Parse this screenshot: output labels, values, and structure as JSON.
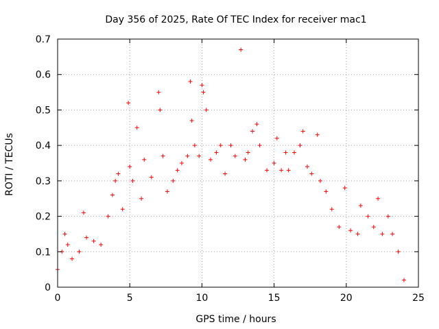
{
  "chart_data": {
    "type": "scatter",
    "title": "Day 356 of 2025, Rate Of TEC Index for receiver mac1",
    "xlabel": "GPS time / hours",
    "ylabel": "ROTI / TECUs",
    "xlim": [
      0,
      25
    ],
    "ylim": [
      0,
      0.7
    ],
    "xticks": [
      "0",
      "5",
      "10",
      "15",
      "20",
      "25"
    ],
    "yticks": [
      "0",
      "0.1",
      "0.2",
      "0.3",
      "0.4",
      "0.5",
      "0.6",
      "0.7"
    ],
    "grid": true,
    "marker": "+",
    "series_color": "#ff0000",
    "series": [
      {
        "x": [
          0.0,
          0.3,
          0.5,
          0.7,
          1.0,
          1.5,
          1.8,
          2.0,
          2.5,
          3.0,
          3.5,
          3.8,
          4.0,
          4.2,
          4.5,
          4.9,
          5.0,
          5.2,
          5.5,
          5.8,
          6.0,
          6.5,
          7.0,
          7.1,
          7.3,
          7.6,
          8.0,
          8.3,
          8.6,
          9.0,
          9.2,
          9.3,
          9.5,
          9.8,
          10.0,
          10.1,
          10.3,
          10.6,
          11.0,
          11.3,
          11.6,
          12.0,
          12.3,
          12.7,
          13.0,
          13.2,
          13.5,
          13.8,
          14.0,
          14.5,
          15.0,
          15.2,
          15.5,
          15.8,
          16.0,
          16.4,
          16.8,
          17.0,
          17.3,
          17.6,
          18.0,
          18.2,
          18.6,
          19.0,
          19.5,
          19.9,
          20.3,
          20.8,
          21.0,
          21.5,
          21.9,
          22.2,
          22.5,
          22.9,
          23.2,
          23.6,
          24.0
        ],
        "y": [
          0.05,
          0.1,
          0.15,
          0.12,
          0.08,
          0.1,
          0.21,
          0.14,
          0.13,
          0.12,
          0.2,
          0.26,
          0.3,
          0.32,
          0.22,
          0.52,
          0.34,
          0.3,
          0.45,
          0.25,
          0.36,
          0.31,
          0.55,
          0.5,
          0.37,
          0.27,
          0.3,
          0.33,
          0.35,
          0.37,
          0.58,
          0.47,
          0.4,
          0.37,
          0.57,
          0.55,
          0.5,
          0.36,
          0.38,
          0.4,
          0.32,
          0.4,
          0.37,
          0.67,
          0.36,
          0.38,
          0.44,
          0.46,
          0.4,
          0.33,
          0.35,
          0.42,
          0.33,
          0.38,
          0.33,
          0.38,
          0.4,
          0.44,
          0.34,
          0.32,
          0.43,
          0.3,
          0.27,
          0.22,
          0.17,
          0.28,
          0.16,
          0.15,
          0.23,
          0.2,
          0.17,
          0.25,
          0.15,
          0.2,
          0.15,
          0.1,
          0.02
        ]
      }
    ]
  }
}
